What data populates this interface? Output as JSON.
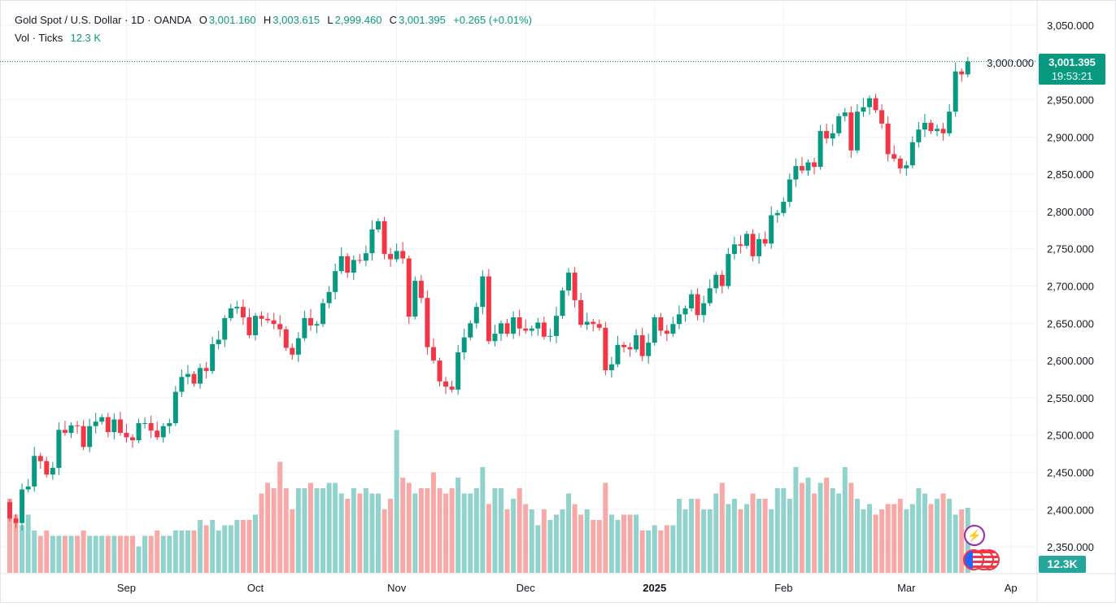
{
  "legend": {
    "symbol": "Gold Spot / U.S. Dollar · 1D · OANDA",
    "o_label": "O",
    "o": "3,001.160",
    "h_label": "H",
    "h": "3,003.615",
    "l_label": "L",
    "l": "2,999.460",
    "c_label": "C",
    "c": "3,001.395",
    "change": "+0.265 (+0.01%)",
    "vol_label": "Vol · Ticks",
    "vol": "12.3 K"
  },
  "last_price": {
    "price": "3,001.395",
    "countdown": "19:53:21",
    "volume": "12.3K"
  },
  "colors": {
    "up": "#089981",
    "down": "#f23645",
    "vol_up": "#92d2cc",
    "vol_down": "#f7a9a7"
  },
  "chart_data": {
    "type": "candlestick",
    "title": "Gold Spot / U.S. Dollar · 1D · OANDA",
    "ylim": [
      2325,
      3075
    ],
    "yticks": [
      "3,050.000",
      "3,000.000",
      "2,950.000",
      "2,900.000",
      "2,850.000",
      "2,800.000",
      "2,750.000",
      "2,700.000",
      "2,650.000",
      "2,600.000",
      "2,550.000",
      "2,500.000",
      "2,450.000",
      "2,400.000",
      "2,350.000"
    ],
    "ytick_values": [
      3050,
      3000,
      2950,
      2900,
      2850,
      2800,
      2750,
      2700,
      2650,
      2600,
      2550,
      2500,
      2450,
      2400,
      2350
    ],
    "xticks": [
      {
        "label": "Sep",
        "index": 19
      },
      {
        "label": "Oct",
        "index": 40
      },
      {
        "label": "Nov",
        "index": 63
      },
      {
        "label": "Dec",
        "index": 84
      },
      {
        "label": "2025",
        "index": 105
      },
      {
        "label": "Feb",
        "index": 126
      },
      {
        "label": "Mar",
        "index": 146
      },
      {
        "label": "Ap",
        "index": 163
      }
    ],
    "first_open": 2410,
    "close": [
      2388,
      2382,
      2427,
      2431,
      2472,
      2465,
      2447,
      2456,
      2507,
      2503,
      2513,
      2512,
      2484,
      2512,
      2518,
      2524,
      2504,
      2521,
      2503,
      2497,
      2493,
      2516,
      2516,
      2506,
      2497,
      2512,
      2516,
      2558,
      2578,
      2582,
      2569,
      2590,
      2586,
      2622,
      2628,
      2657,
      2670,
      2672,
      2658,
      2634,
      2660,
      2656,
      2654,
      2649,
      2642,
      2617,
      2608,
      2630,
      2657,
      2647,
      2649,
      2677,
      2692,
      2720,
      2740,
      2718,
      2735,
      2734,
      2744,
      2776,
      2787,
      2743,
      2736,
      2747,
      2737,
      2659,
      2707,
      2684,
      2618,
      2600,
      2572,
      2565,
      2561,
      2611,
      2631,
      2650,
      2672,
      2713,
      2626,
      2636,
      2650,
      2636,
      2658,
      2643,
      2640,
      2643,
      2651,
      2632,
      2633,
      2660,
      2694,
      2718,
      2681,
      2648,
      2652,
      2649,
      2644,
      2587,
      2595,
      2621,
      2618,
      2615,
      2634,
      2606,
      2624,
      2658,
      2640,
      2636,
      2649,
      2662,
      2670,
      2689,
      2661,
      2677,
      2697,
      2715,
      2700,
      2743,
      2756,
      2754,
      2770,
      2740,
      2763,
      2757,
      2795,
      2798,
      2813,
      2843,
      2861,
      2855,
      2866,
      2860,
      2908,
      2898,
      2905,
      2928,
      2933,
      2882,
      2934,
      2940,
      2952,
      2936,
      2918,
      2877,
      2871,
      2858,
      2862,
      2893,
      2910,
      2919,
      2908,
      2911,
      2905,
      2934,
      2988,
      2984,
      3001.395
    ],
    "volume_k": [
      14,
      11,
      9,
      11,
      8,
      7,
      8,
      7,
      7,
      7,
      7,
      7,
      8,
      7,
      7,
      7,
      7,
      7,
      7,
      7,
      7,
      5,
      7,
      7,
      8,
      7,
      7,
      8,
      8,
      8,
      8,
      10,
      9,
      10,
      8,
      9,
      9,
      10,
      10,
      10,
      11,
      15,
      17,
      16,
      21,
      16,
      12,
      16,
      16,
      17,
      16,
      16,
      17,
      17,
      15,
      14,
      16,
      15,
      16,
      15,
      15,
      12,
      14,
      27,
      18,
      17,
      15,
      16,
      16,
      19,
      16,
      15,
      16,
      18,
      15,
      15,
      16,
      20,
      13,
      16,
      16,
      12,
      14,
      16,
      13,
      12,
      9,
      12,
      10,
      11,
      12,
      15,
      13,
      11,
      12,
      10,
      10,
      17,
      11,
      10,
      11,
      11,
      11,
      8,
      8,
      9,
      8,
      9,
      9,
      14,
      12,
      14,
      14,
      12,
      12,
      15,
      17,
      13,
      14,
      12,
      13,
      15,
      14,
      14,
      12,
      16,
      16,
      14,
      20,
      17,
      18,
      15,
      17,
      18,
      16,
      15,
      20,
      17,
      14,
      12,
      13,
      11,
      12,
      13,
      13,
      14,
      12,
      13,
      16,
      15,
      13,
      14,
      15,
      14,
      11,
      12,
      12.3
    ]
  }
}
